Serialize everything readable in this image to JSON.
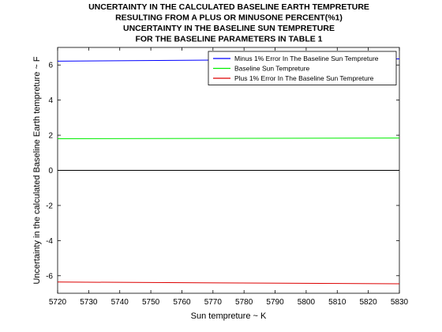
{
  "chart_data": {
    "type": "line",
    "title": [
      "UNCERTAINTY IN THE CALCULATED BASELINE EARTH TEMPRETURE",
      "RESULTING FROM A PLUS OR MINUSONE PERCENT(%1)",
      "UNCERTAINTY IN THE BASELINE SUN TEMPRETURE",
      "FOR THE BASELINE PARAMETERS IN TABLE 1"
    ],
    "xlabel": "Sun tempreture ~ K",
    "ylabel": "Uncertainty in the calculated Baseline Earth tempreture ~ F",
    "xlim": [
      5720,
      5830
    ],
    "ylim": [
      -7,
      7
    ],
    "xticks": [
      5720,
      5730,
      5740,
      5750,
      5760,
      5770,
      5780,
      5790,
      5800,
      5810,
      5820,
      5830
    ],
    "yticks": [
      -6,
      -4,
      -2,
      0,
      2,
      4,
      6
    ],
    "grid": false,
    "legend_position": "top-right",
    "series": [
      {
        "name": "Minus 1% Error In The Baseline Sun Tempreture",
        "color": "#0000ff",
        "x": [
          5720,
          5830
        ],
        "y": [
          6.22,
          6.35
        ]
      },
      {
        "name": "Baseline Sun Tempreture",
        "color": "#00ee00",
        "x": [
          5720,
          5830
        ],
        "y": [
          1.8,
          1.84
        ]
      },
      {
        "name": "Plus 1% Error In The Baseline Sun Tempreture",
        "color": "#dd0000",
        "x": [
          5720,
          5830
        ],
        "y": [
          -6.36,
          -6.46
        ]
      },
      {
        "name": "",
        "color": "#000000",
        "x": [
          5720,
          5830
        ],
        "y": [
          0,
          0
        ]
      }
    ]
  }
}
